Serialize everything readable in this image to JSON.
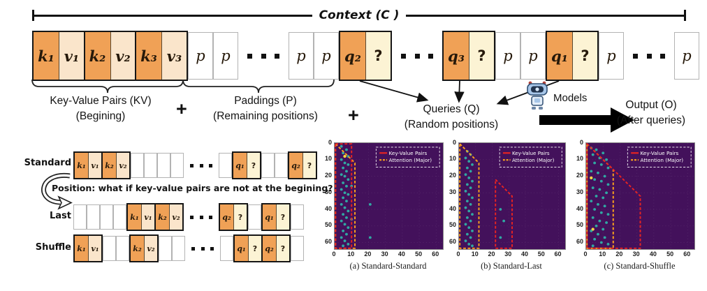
{
  "context": {
    "label": "Context (C )"
  },
  "top_row": {
    "tokens": [
      {
        "pair": [
          [
            "k₁",
            "k"
          ],
          [
            "v₁",
            "v"
          ]
        ]
      },
      {
        "pair": [
          [
            "k₂",
            "k"
          ],
          [
            "v₂",
            "v"
          ]
        ]
      },
      {
        "pair": [
          [
            "k₃",
            "k"
          ],
          [
            "v₃",
            "v"
          ]
        ]
      },
      {
        "cell": [
          "p",
          "p"
        ]
      },
      {
        "cell": [
          "p",
          "p"
        ]
      },
      {
        "dots": 3
      },
      {
        "cell": [
          "p",
          "p"
        ]
      },
      {
        "cell": [
          "p",
          "p"
        ]
      },
      {
        "pair": [
          [
            "q₂",
            "q"
          ],
          [
            "?",
            "m"
          ]
        ]
      },
      {
        "dots": 3
      },
      {
        "pair": [
          [
            "q₃",
            "q"
          ],
          [
            "?",
            "m"
          ]
        ]
      },
      {
        "cell": [
          "p",
          "p"
        ]
      },
      {
        "cell": [
          "p",
          "p"
        ]
      },
      {
        "pair": [
          [
            "q₁",
            "q"
          ],
          [
            "?",
            "m"
          ]
        ]
      },
      {
        "cell": [
          "p",
          "p"
        ]
      },
      {
        "dots": 3
      },
      {
        "cell": [
          "p",
          "p"
        ]
      }
    ]
  },
  "section_labels": {
    "kv_title": "Key-Value Pairs (KV)",
    "kv_sub": "(Begining)",
    "plus1": "+",
    "pad_title": "Paddings (P)",
    "pad_sub": "(Remaining positions)",
    "plus2": "+",
    "q_title": "Queries (Q)",
    "q_sub": "(Random positions)",
    "models_label": "Models",
    "out_title": "Output (O)",
    "out_sub": "(After queries)"
  },
  "bottom": {
    "question": "Position: what if key-value pairs are not at the begining?",
    "rows": [
      {
        "label": "Standard",
        "tokens": [
          {
            "pair": [
              [
                "k₁",
                "k"
              ],
              [
                "v₁",
                "v"
              ]
            ]
          },
          {
            "pair": [
              [
                "k₂",
                "k"
              ],
              [
                "v₂",
                "v"
              ]
            ]
          },
          {
            "cell": [
              "",
              "e"
            ]
          },
          {
            "cell": [
              "",
              "e"
            ]
          },
          {
            "cell": [
              "",
              "e"
            ]
          },
          {
            "cell": [
              "",
              "e"
            ]
          },
          {
            "dots": 3
          },
          {
            "cell": [
              "",
              "e"
            ]
          },
          {
            "pair": [
              [
                "q₁",
                "q"
              ],
              [
                "?",
                "m"
              ]
            ]
          },
          {
            "cell": [
              "",
              "e"
            ]
          },
          {
            "cell": [
              "",
              "e"
            ]
          },
          {
            "pair": [
              [
                "q₂",
                "q"
              ],
              [
                "?",
                "m"
              ]
            ]
          }
        ]
      },
      {
        "label": "Last",
        "tokens": [
          {
            "cell": [
              "",
              "e"
            ]
          },
          {
            "cell": [
              "",
              "e"
            ]
          },
          {
            "cell": [
              "",
              "e"
            ]
          },
          {
            "cell": [
              "",
              "e"
            ]
          },
          {
            "pair": [
              [
                "k₁",
                "k"
              ],
              [
                "v₁",
                "v"
              ]
            ]
          },
          {
            "pair": [
              [
                "k₂",
                "k"
              ],
              [
                "v₂",
                "v"
              ]
            ]
          },
          {
            "dots": 3
          },
          {
            "pair": [
              [
                "q₂",
                "q"
              ],
              [
                "?",
                "m"
              ]
            ]
          },
          {
            "cell": [
              "",
              "e"
            ]
          },
          {
            "pair": [
              [
                "q₁",
                "q"
              ],
              [
                "?",
                "m"
              ]
            ]
          },
          {
            "cell": [
              "",
              "e"
            ]
          }
        ]
      },
      {
        "label": "Shuffle",
        "tokens": [
          {
            "pair": [
              [
                "k₁",
                "k"
              ],
              [
                "v₁",
                "v"
              ]
            ]
          },
          {
            "cell": [
              "",
              "e"
            ]
          },
          {
            "cell": [
              "",
              "e"
            ]
          },
          {
            "pair": [
              [
                "k₂",
                "k"
              ],
              [
                "v₂",
                "v"
              ]
            ]
          },
          {
            "cell": [
              "",
              "e"
            ]
          },
          {
            "cell": [
              "",
              "e"
            ]
          },
          {
            "dots": 3
          },
          {
            "cell": [
              "",
              "e"
            ]
          },
          {
            "pair": [
              [
                "q₁",
                "q"
              ],
              [
                "?",
                "m"
              ]
            ]
          },
          {
            "pair": [
              [
                "q₂",
                "q"
              ],
              [
                "?",
                "m"
              ]
            ]
          },
          {
            "cell": [
              "",
              "e"
            ]
          }
        ]
      }
    ]
  },
  "chart_data": [
    {
      "type": "heatmap",
      "caption": "(a) Standard-Standard",
      "x_range": [
        0,
        64
      ],
      "y_range": [
        0,
        64
      ],
      "x_ticks": [
        0,
        10,
        20,
        30,
        40,
        50,
        60
      ],
      "y_ticks": [
        0,
        10,
        20,
        30,
        40,
        50,
        60
      ],
      "legend": [
        {
          "label": "Key-Value Pairs",
          "style": "solid",
          "color": "#ea2420"
        },
        {
          "label": "Attention (Major)",
          "style": "dashed",
          "color": "#ffa41b"
        }
      ],
      "regions": [
        {
          "name": "attention-major",
          "color": "#ffa41b",
          "points": [
            [
              0.5,
              0.5
            ],
            [
              12,
              12
            ],
            [
              12,
              63.5
            ],
            [
              0.5,
              63.5
            ]
          ]
        },
        {
          "name": "key-value-pairs",
          "color": "#ea2420",
          "points": [
            [
              0.5,
              0.5
            ],
            [
              10,
              0.5
            ],
            [
              10,
              63.5
            ],
            [
              0.5,
              63.5
            ]
          ]
        }
      ],
      "points": [
        [
          4,
          2
        ],
        [
          7,
          4
        ],
        [
          5,
          6
        ],
        [
          8,
          8
        ],
        [
          4,
          10
        ],
        [
          6,
          12
        ],
        [
          8,
          13
        ],
        [
          5,
          15
        ],
        [
          7,
          17
        ],
        [
          4,
          19
        ],
        [
          6,
          20
        ],
        [
          8,
          22
        ],
        [
          5,
          24
        ],
        [
          7,
          26
        ],
        [
          4,
          28
        ],
        [
          6,
          30
        ],
        [
          8,
          31
        ],
        [
          5,
          33
        ],
        [
          7,
          35
        ],
        [
          4,
          37
        ],
        [
          21,
          37
        ],
        [
          6,
          39
        ],
        [
          8,
          41
        ],
        [
          5,
          43
        ],
        [
          7,
          45
        ],
        [
          4,
          47
        ],
        [
          6,
          49
        ],
        [
          8,
          51
        ],
        [
          5,
          53
        ],
        [
          7,
          55
        ],
        [
          21,
          57
        ],
        [
          4,
          57
        ],
        [
          6,
          59
        ],
        [
          8,
          61
        ],
        [
          5,
          62
        ],
        [
          10,
          26
        ],
        [
          10,
          46
        ]
      ],
      "highlight_points": [
        [
          6,
          8,
          "#f6d743"
        ]
      ]
    },
    {
      "type": "heatmap",
      "caption": "(b) Standard-Last",
      "x_range": [
        0,
        64
      ],
      "y_range": [
        0,
        64
      ],
      "x_ticks": [
        0,
        10,
        20,
        30,
        40,
        50,
        60
      ],
      "y_ticks": [
        0,
        10,
        20,
        30,
        40,
        50,
        60
      ],
      "legend": [
        {
          "label": "Key-Value Pairs",
          "style": "solid",
          "color": "#ea2420"
        },
        {
          "label": "Attention (Major)",
          "style": "dashed",
          "color": "#ffa41b"
        }
      ],
      "regions": [
        {
          "name": "attention-major",
          "color": "#ffa41b",
          "points": [
            [
              0.5,
              0.5
            ],
            [
              12,
              12
            ],
            [
              12,
              63.5
            ],
            [
              0.5,
              63.5
            ]
          ]
        },
        {
          "name": "key-value-pairs",
          "color": "#ea2420",
          "points": [
            [
              22,
              22
            ],
            [
              32,
              32
            ],
            [
              32,
              63.5
            ],
            [
              22,
              63.5
            ]
          ]
        }
      ],
      "points": [
        [
          5,
          5
        ],
        [
          7,
          7
        ],
        [
          4,
          9
        ],
        [
          6,
          11
        ],
        [
          8,
          13
        ],
        [
          5,
          15
        ],
        [
          7,
          17
        ],
        [
          4,
          19
        ],
        [
          6,
          21
        ],
        [
          8,
          23
        ],
        [
          5,
          25
        ],
        [
          7,
          27
        ],
        [
          4,
          29
        ],
        [
          6,
          31
        ],
        [
          8,
          33
        ],
        [
          5,
          35
        ],
        [
          7,
          37
        ],
        [
          4,
          39
        ],
        [
          25,
          40
        ],
        [
          6,
          41
        ],
        [
          8,
          43
        ],
        [
          5,
          45
        ],
        [
          27,
          47
        ],
        [
          7,
          47
        ],
        [
          4,
          49
        ],
        [
          6,
          51
        ],
        [
          8,
          53
        ],
        [
          5,
          55
        ],
        [
          25,
          57
        ],
        [
          7,
          57
        ],
        [
          4,
          59
        ],
        [
          6,
          61
        ],
        [
          8,
          62
        ]
      ],
      "highlight_points": []
    },
    {
      "type": "heatmap",
      "caption": "(c) Standard-Shuffle",
      "x_range": [
        0,
        64
      ],
      "y_range": [
        0,
        64
      ],
      "x_ticks": [
        0,
        10,
        20,
        30,
        40,
        50,
        60
      ],
      "y_ticks": [
        0,
        10,
        20,
        30,
        40,
        50,
        60
      ],
      "legend": [
        {
          "label": "Key-Value Pairs",
          "style": "solid",
          "color": "#ea2420"
        },
        {
          "label": "Attention (Major)",
          "style": "dashed",
          "color": "#ffa41b"
        }
      ],
      "regions": [
        {
          "name": "attention-major",
          "color": "#ffa41b",
          "points": [
            [
              0.5,
              0.5
            ],
            [
              16,
              16
            ],
            [
              16,
              63.5
            ],
            [
              0.5,
              63.5
            ]
          ]
        },
        {
          "name": "key-value-pairs",
          "color": "#ea2420",
          "points": [
            [
              0.5,
              0.5
            ],
            [
              32,
              32
            ],
            [
              32,
              63.5
            ],
            [
              0.5,
              63.5
            ]
          ]
        }
      ],
      "points": [
        [
          3,
          3
        ],
        [
          6,
          4
        ],
        [
          10,
          6
        ],
        [
          4,
          7
        ],
        [
          8,
          9
        ],
        [
          12,
          10
        ],
        [
          5,
          12
        ],
        [
          9,
          13
        ],
        [
          13,
          15
        ],
        [
          3,
          17
        ],
        [
          7,
          18
        ],
        [
          11,
          20
        ],
        [
          5,
          22
        ],
        [
          9,
          23
        ],
        [
          13,
          25
        ],
        [
          4,
          27
        ],
        [
          8,
          28
        ],
        [
          12,
          30
        ],
        [
          6,
          32
        ],
        [
          10,
          33
        ],
        [
          3,
          35
        ],
        [
          7,
          37
        ],
        [
          11,
          38
        ],
        [
          5,
          40
        ],
        [
          9,
          42
        ],
        [
          13,
          43
        ],
        [
          4,
          45
        ],
        [
          8,
          47
        ],
        [
          12,
          48
        ],
        [
          6,
          50
        ],
        [
          10,
          52
        ],
        [
          3,
          53
        ],
        [
          7,
          55
        ],
        [
          11,
          57
        ],
        [
          5,
          58
        ],
        [
          9,
          60
        ],
        [
          13,
          61
        ],
        [
          4,
          62
        ]
      ],
      "highlight_points": [
        [
          3,
          21,
          "#f6d743"
        ],
        [
          4,
          52,
          "#f6d743"
        ]
      ]
    }
  ],
  "colors": {
    "orange": "#f0a156",
    "light": "#fae5cb",
    "cream": "#fcf3d4",
    "heatmap_bg": "#43115b",
    "dot": "#2fb5a8",
    "kv_line": "#ea2420",
    "attention_line": "#ffa41b"
  }
}
